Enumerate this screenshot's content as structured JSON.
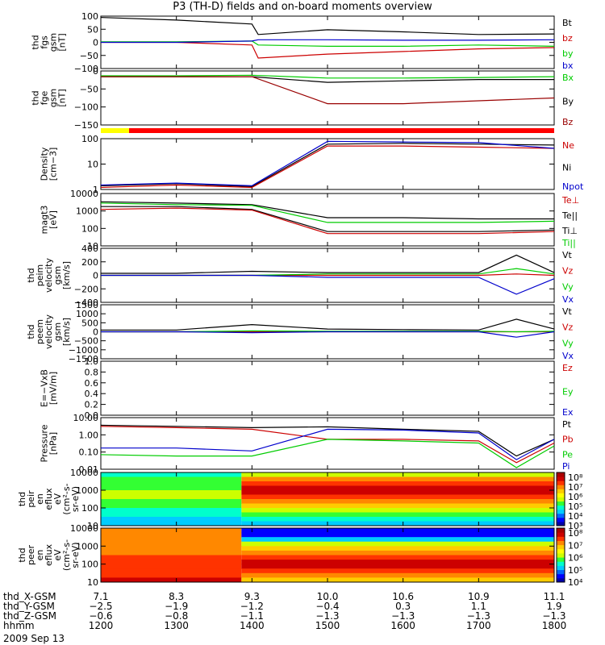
{
  "title": "P3 (TH-D) fields and on-board moments overview",
  "panels": [
    {
      "id": "fgs",
      "ylabel": [
        "thd",
        "fgs",
        "gsm",
        "[nT]"
      ],
      "ticks": [
        "100",
        "50",
        "0",
        "−50",
        "−100"
      ],
      "legend": [
        {
          "name": "Bt",
          "color": "#000000"
        },
        {
          "name": "bz",
          "color": "#cc0000"
        },
        {
          "name": "by",
          "color": "#00cc00"
        },
        {
          "name": "bx",
          "color": "#0000cc"
        }
      ]
    },
    {
      "id": "fge",
      "ylabel": [
        "thd",
        "fge",
        "gsm",
        "[nT]"
      ],
      "ticks": [
        "0",
        "−50",
        "−100",
        "−150"
      ],
      "legend": [
        {
          "name": "Bx",
          "color": "#00cc00"
        },
        {
          "name": "By",
          "color": "#000000"
        },
        {
          "name": "Bz",
          "color": "#990000"
        }
      ]
    },
    {
      "id": "density",
      "ylabel": [
        "Density",
        "[cm−3]"
      ],
      "ticks": [
        "100",
        "10",
        "1"
      ],
      "legend": [
        {
          "name": "Ne",
          "color": "#cc0000"
        },
        {
          "name": "Ni",
          "color": "#000000"
        },
        {
          "name": "Npot",
          "color": "#0000cc"
        }
      ]
    },
    {
      "id": "temp",
      "ylabel": [
        "magt3",
        "[eV]"
      ],
      "ticks": [
        "10000",
        "1000",
        "100",
        "10"
      ],
      "legend": [
        {
          "name": "Te⊥",
          "color": "#cc0000"
        },
        {
          "name": "Te||",
          "color": "#000000"
        },
        {
          "name": "Ti⊥",
          "color": "#000000"
        },
        {
          "name": "Ti||",
          "color": "#00cc00"
        }
      ]
    },
    {
      "id": "peim",
      "ylabel": [
        "thd",
        "peim",
        "velocity",
        "gsm",
        "[km/s]"
      ],
      "ticks": [
        "400",
        "200",
        "0",
        "−200",
        "−400"
      ],
      "legend": [
        {
          "name": "Vt",
          "color": "#000000"
        },
        {
          "name": "Vz",
          "color": "#cc0000"
        },
        {
          "name": "Vy",
          "color": "#00cc00"
        },
        {
          "name": "Vx",
          "color": "#0000cc"
        }
      ]
    },
    {
      "id": "peem",
      "ylabel": [
        "thd",
        "peem",
        "velocity",
        "gsm",
        "[km/s]"
      ],
      "ticks": [
        "1500",
        "1000",
        "500",
        "0",
        "−500",
        "−1000",
        "−1500"
      ],
      "legend": [
        {
          "name": "Vt",
          "color": "#000000"
        },
        {
          "name": "Vz",
          "color": "#cc0000"
        },
        {
          "name": "Vy",
          "color": "#00cc00"
        },
        {
          "name": "Vx",
          "color": "#0000cc"
        }
      ]
    },
    {
      "id": "efield",
      "ylabel": [
        "E=−VxB",
        "[mV/m]"
      ],
      "ticks": [
        "1.0",
        "0.8",
        "0.6",
        "0.4",
        "0.2",
        "0.0"
      ],
      "legend": [
        {
          "name": "Ez",
          "color": "#cc0000"
        },
        {
          "name": "Ey",
          "color": "#00cc00"
        },
        {
          "name": "Ex",
          "color": "#0000cc"
        }
      ]
    },
    {
      "id": "pressure",
      "ylabel": [
        "Pressure",
        "[nPa]"
      ],
      "ticks": [
        "10.00",
        "1.00",
        "0.10",
        "0.01"
      ],
      "legend": [
        {
          "name": "Pt",
          "color": "#000000"
        },
        {
          "name": "Pb",
          "color": "#cc0000"
        },
        {
          "name": "Pe",
          "color": "#00cc00"
        },
        {
          "name": "Pi",
          "color": "#0000cc"
        }
      ]
    },
    {
      "id": "peir",
      "ylabel": [
        "thd",
        "peir",
        "en",
        "eflux",
        "eV",
        "(cm²-s-",
        "sr-eV)"
      ],
      "ticks": [
        "10000",
        "1000",
        "100",
        "10"
      ],
      "colorbar": [
        "10⁸",
        "10⁷",
        "10⁶",
        "10⁵",
        "10⁴",
        "10³"
      ]
    },
    {
      "id": "peer",
      "ylabel": [
        "thd",
        "peer",
        "en",
        "eflux",
        "eV",
        "(cm²-s-",
        "sr-eV)"
      ],
      "ticks": [
        "10000",
        "1000",
        "100",
        "10"
      ],
      "colorbar": [
        "10⁸",
        "10⁷",
        "10⁶",
        "10⁵",
        "10⁴"
      ]
    }
  ],
  "footer": {
    "rows": [
      {
        "name": "thd_X-GSM",
        "values": [
          "7.1",
          "8.3",
          "9.3",
          "10.0",
          "10.6",
          "10.9",
          "11.1"
        ]
      },
      {
        "name": "thd_Y-GSM",
        "values": [
          "−2.5",
          "−1.9",
          "−1.2",
          "−0.4",
          "0.3",
          "1.1",
          "1.9"
        ]
      },
      {
        "name": "thd_Z-GSM",
        "values": [
          "−0.6",
          "−0.8",
          "−1.1",
          "−1.3",
          "−1.3",
          "−1.3",
          "−1.3"
        ]
      },
      {
        "name": "hhmm",
        "values": [
          "1200",
          "1300",
          "1400",
          "1500",
          "1600",
          "1700",
          "1800"
        ]
      }
    ],
    "date": "2009 Sep 13"
  },
  "chart_data": {
    "type": "line",
    "title": "P3 (TH-D) fields and on-board moments overview",
    "x": [
      "1200",
      "1300",
      "1400",
      "1500",
      "1600",
      "1700",
      "1800"
    ],
    "xlabel": "hhmm",
    "date": "2009 Sep 13",
    "panels": [
      {
        "id": "fgs",
        "ylim": [
          -100,
          100
        ],
        "series": [
          {
            "name": "Bt",
            "x": [
              "1200",
              "1300",
              "1400",
              "1405",
              "1500",
              "1600",
              "1700",
              "1800"
            ],
            "values": [
              95,
              85,
              70,
              30,
              48,
              40,
              30,
              32
            ]
          },
          {
            "name": "bz",
            "x": [
              "1200",
              "1300",
              "1400",
              "1405",
              "1500",
              "1600",
              "1700",
              "1800"
            ],
            "values": [
              0,
              0,
              -10,
              -60,
              -45,
              -35,
              -25,
              -20
            ]
          },
          {
            "name": "by",
            "x": [
              "1200",
              "1300",
              "1400",
              "1405",
              "1500",
              "1600",
              "1700",
              "1800"
            ],
            "values": [
              2,
              2,
              5,
              -10,
              -15,
              -15,
              -10,
              -15
            ]
          },
          {
            "name": "bx",
            "x": [
              "1200",
              "1300",
              "1400",
              "1405",
              "1500",
              "1600",
              "1700",
              "1800"
            ],
            "values": [
              0,
              0,
              5,
              10,
              10,
              8,
              8,
              10
            ]
          }
        ]
      },
      {
        "id": "fge",
        "ylim": [
          -170,
          20
        ],
        "series": [
          {
            "name": "By",
            "x": [
              "1200",
              "1300",
              "1400",
              "1500",
              "1600",
              "1700",
              "1800"
            ],
            "values": [
              0,
              0,
              0,
              -20,
              -15,
              -10,
              -10
            ]
          },
          {
            "name": "Bx",
            "x": [
              "1200",
              "1300",
              "1400",
              "1500",
              "1600",
              "1700",
              "1800"
            ],
            "values": [
              3,
              3,
              5,
              -5,
              -5,
              -3,
              0
            ]
          },
          {
            "name": "Bz",
            "x": [
              "1200",
              "1300",
              "1400",
              "1500",
              "1600",
              "1700",
              "1800"
            ],
            "values": [
              0,
              0,
              0,
              -95,
              -95,
              -85,
              -75
            ]
          }
        ]
      },
      {
        "id": "density",
        "ylim": [
          0.8,
          200
        ],
        "yscale": "log",
        "series": [
          {
            "name": "Ni",
            "x": [
              "1200",
              "1300",
              "1400",
              "1500",
              "1600",
              "1700",
              "1800"
            ],
            "values": [
              1.2,
              1.5,
              1.1,
              110,
              120,
              110,
              100
            ]
          },
          {
            "name": "Ne",
            "x": [
              "1200",
              "1300",
              "1400",
              "1500",
              "1600",
              "1700",
              "1800"
            ],
            "values": [
              1.0,
              1.3,
              1.0,
              90,
              90,
              80,
              70
            ]
          },
          {
            "name": "Npot",
            "x": [
              "1200",
              "1300",
              "1400",
              "1500",
              "1600",
              "1700",
              "1800"
            ],
            "values": [
              1.3,
              1.6,
              1.2,
              150,
              140,
              130,
              70
            ]
          }
        ]
      },
      {
        "id": "temp",
        "ylim": [
          5,
          10000
        ],
        "yscale": "log",
        "series": [
          {
            "name": "Te||",
            "x": [
              "1200",
              "1300",
              "1400",
              "1500",
              "1600",
              "1700",
              "1800"
            ],
            "values": [
              1500,
              1500,
              1000,
              40,
              40,
              40,
              50
            ]
          },
          {
            "name": "Te⊥",
            "x": [
              "1200",
              "1300",
              "1400",
              "1500",
              "1600",
              "1700",
              "1800"
            ],
            "values": [
              1000,
              1200,
              900,
              30,
              30,
              30,
              40
            ]
          },
          {
            "name": "Ti⊥",
            "x": [
              "1200",
              "1300",
              "1400",
              "1500",
              "1600",
              "1700",
              "1800"
            ],
            "values": [
              3000,
              2500,
              2000,
              300,
              300,
              250,
              250
            ]
          },
          {
            "name": "Ti||",
            "x": [
              "1200",
              "1300",
              "1400",
              "1500",
              "1600",
              "1700",
              "1800"
            ],
            "values": [
              2500,
              2000,
              1800,
              150,
              150,
              150,
              180
            ]
          }
        ]
      },
      {
        "id": "peim",
        "ylim": [
          -400,
          400
        ],
        "series": [
          {
            "name": "Vt",
            "x": [
              "1200",
              "1300",
              "1400",
              "1500",
              "1600",
              "1700",
              "1730",
              "1800"
            ],
            "values": [
              30,
              30,
              60,
              40,
              40,
              40,
              300,
              40
            ]
          },
          {
            "name": "Vz",
            "x": [
              "1200",
              "1300",
              "1400",
              "1500",
              "1600",
              "1700",
              "1730",
              "1800"
            ],
            "values": [
              0,
              0,
              0,
              0,
              0,
              0,
              20,
              0
            ]
          },
          {
            "name": "Vy",
            "x": [
              "1200",
              "1300",
              "1400",
              "1500",
              "1600",
              "1700",
              "1730",
              "1800"
            ],
            "values": [
              0,
              0,
              0,
              20,
              20,
              20,
              100,
              20
            ]
          },
          {
            "name": "Vx",
            "x": [
              "1200",
              "1300",
              "1400",
              "1500",
              "1600",
              "1700",
              "1730",
              "1800"
            ],
            "values": [
              0,
              0,
              0,
              -30,
              -30,
              -30,
              -280,
              -50
            ]
          }
        ]
      },
      {
        "id": "peem",
        "ylim": [
          -1500,
          1500
        ],
        "series": [
          {
            "name": "Vt",
            "x": [
              "1200",
              "1300",
              "1400",
              "1500",
              "1600",
              "1700",
              "1730",
              "1800"
            ],
            "values": [
              100,
              100,
              400,
              150,
              120,
              100,
              700,
              150
            ]
          },
          {
            "name": "Vz",
            "x": [
              "1200",
              "1300",
              "1400",
              "1500",
              "1600",
              "1700",
              "1730",
              "1800"
            ],
            "values": [
              0,
              0,
              0,
              0,
              0,
              0,
              0,
              0
            ]
          },
          {
            "name": "Vy",
            "x": [
              "1200",
              "1300",
              "1400",
              "1500",
              "1600",
              "1700",
              "1730",
              "1800"
            ],
            "values": [
              0,
              0,
              50,
              30,
              30,
              30,
              0,
              30
            ]
          },
          {
            "name": "Vx",
            "x": [
              "1200",
              "1300",
              "1400",
              "1500",
              "1600",
              "1700",
              "1730",
              "1800"
            ],
            "values": [
              0,
              0,
              -50,
              0,
              0,
              0,
              -300,
              0
            ]
          }
        ]
      },
      {
        "id": "efield",
        "ylim": [
          0,
          1
        ],
        "series": []
      },
      {
        "id": "pressure",
        "ylim": [
          0.008,
          10
        ],
        "yscale": "log",
        "series": [
          {
            "name": "Pt",
            "x": [
              "1200",
              "1300",
              "1400",
              "1500",
              "1600",
              "1700",
              "1730",
              "1800"
            ],
            "values": [
              3.5,
              3,
              2.5,
              2.8,
              2.0,
              1.5,
              0.05,
              0.5
            ]
          },
          {
            "name": "Pb",
            "x": [
              "1200",
              "1300",
              "1400",
              "1500",
              "1600",
              "1700",
              "1730",
              "1800"
            ],
            "values": [
              3.0,
              2.5,
              2.0,
              0.5,
              0.5,
              0.4,
              0.02,
              0.3
            ]
          },
          {
            "name": "Pe",
            "x": [
              "1200",
              "1300",
              "1400",
              "1500",
              "1600",
              "1700",
              "1730",
              "1800"
            ],
            "values": [
              0.06,
              0.05,
              0.05,
              0.5,
              0.4,
              0.3,
              0.01,
              0.2
            ]
          },
          {
            "name": "Pi",
            "x": [
              "1200",
              "1300",
              "1400",
              "1500",
              "1600",
              "1700",
              "1730",
              "1800"
            ],
            "values": [
              0.15,
              0.15,
              0.1,
              2.0,
              1.8,
              1.2,
              0.03,
              0.5
            ]
          }
        ]
      },
      {
        "id": "peir",
        "type": "heatmap",
        "yscale": "log",
        "ylim": [
          5,
          30000
        ],
        "zrange": [
          "10³",
          "10⁸"
        ]
      },
      {
        "id": "peer",
        "type": "heatmap",
        "yscale": "log",
        "ylim": [
          5,
          30000
        ],
        "zrange": [
          "10⁴",
          "10⁸"
        ]
      }
    ]
  }
}
